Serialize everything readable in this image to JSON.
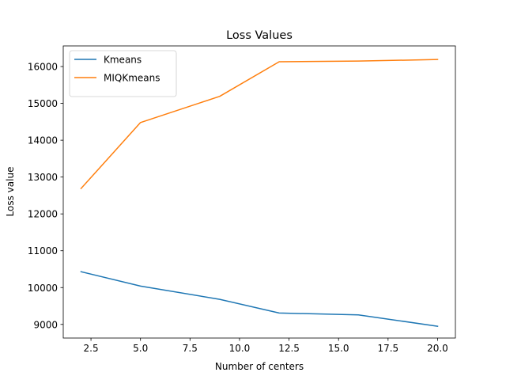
{
  "chart_data": {
    "type": "line",
    "title": "Loss Values",
    "xlabel": "Number of centers",
    "ylabel": "Loss value",
    "x": [
      2,
      5,
      9,
      12,
      16,
      20
    ],
    "xlim": [
      1.1,
      20.9
    ],
    "ylim": [
      8630,
      16560
    ],
    "xticks": [
      2.5,
      5.0,
      7.5,
      10.0,
      12.5,
      15.0,
      17.5,
      20.0
    ],
    "xtick_labels": [
      "2.5",
      "5.0",
      "7.5",
      "10.0",
      "12.5",
      "15.0",
      "17.5",
      "20.0"
    ],
    "yticks": [
      9000,
      10000,
      11000,
      12000,
      13000,
      14000,
      15000,
      16000
    ],
    "ytick_labels": [
      "9000",
      "10000",
      "11000",
      "12000",
      "13000",
      "14000",
      "15000",
      "16000"
    ],
    "grid": false,
    "legend_position": "top-left",
    "series": [
      {
        "name": "Kmeans",
        "color": "#1f77b4",
        "values": [
          10430,
          10040,
          9680,
          9310,
          9260,
          8950
        ]
      },
      {
        "name": "MIQKmeans",
        "color": "#ff7f0e",
        "values": [
          12690,
          14480,
          15190,
          16130,
          16150,
          16190
        ]
      }
    ]
  }
}
